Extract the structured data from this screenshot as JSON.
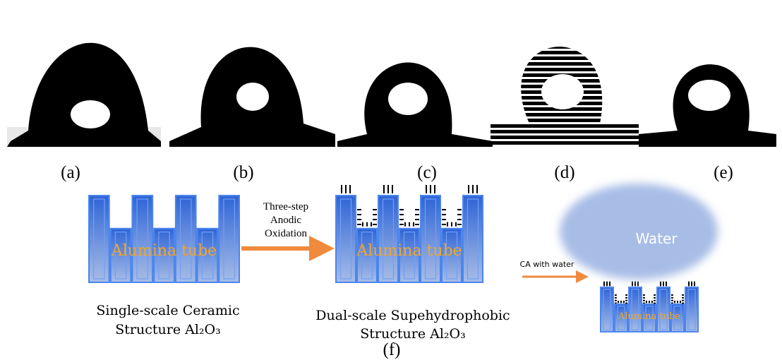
{
  "panels": [
    {
      "label": "(a)"
    },
    {
      "label": "(b)"
    },
    {
      "label": "(c)"
    },
    {
      "label": "(d)"
    },
    {
      "label": "(e)"
    }
  ],
  "diagram": {
    "step_label": [
      "Three-step",
      "Anodic",
      "Oxidation"
    ],
    "tube_label": "Alumina tube",
    "single_caption": [
      "Single-scale Ceramic",
      "Structure Al₂O₃"
    ],
    "dual_caption": [
      "Dual-scale Supehydrophobic",
      "Structure Al₂O₃"
    ],
    "ca_label": "CA with water",
    "water_label": "Water",
    "label": "(f)"
  }
}
